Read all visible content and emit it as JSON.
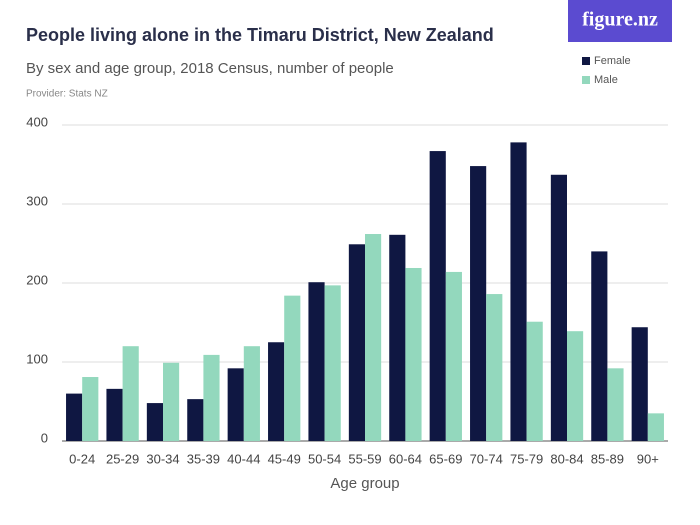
{
  "logo": "figure.nz",
  "chart_data": {
    "type": "bar",
    "title": "People living alone in the Timaru District, New Zealand",
    "subtitle": "By sex and age group, 2018 Census, number of people",
    "source": "Provider: Stats NZ",
    "x_label": "Age group",
    "categories": [
      "0-24",
      "25-29",
      "30-34",
      "35-39",
      "40-44",
      "45-49",
      "50-54",
      "55-59",
      "60-64",
      "65-69",
      "70-74",
      "75-79",
      "80-84",
      "85-89",
      "90+"
    ],
    "series": [
      {
        "name": "Female",
        "color": "#0f1742",
        "values": [
          60,
          66,
          48,
          53,
          92,
          125,
          201,
          249,
          261,
          367,
          348,
          378,
          337,
          240,
          144
        ]
      },
      {
        "name": "Male",
        "color": "#93d8bd",
        "values": [
          81,
          120,
          99,
          109,
          120,
          184,
          197,
          262,
          219,
          214,
          186,
          151,
          139,
          92,
          35
        ]
      }
    ],
    "ylim": [
      0,
      400
    ],
    "yticks": [
      0,
      100,
      200,
      300,
      400
    ],
    "grid": true,
    "legend": "top-right"
  }
}
